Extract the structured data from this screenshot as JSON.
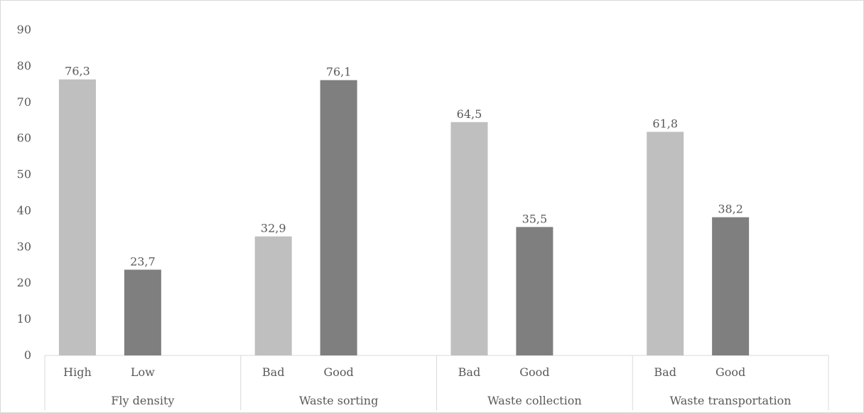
{
  "chart_data": {
    "type": "bar",
    "title": "",
    "xlabel": "",
    "ylabel": "",
    "ylim": [
      0,
      90
    ],
    "yticks": [
      0,
      10,
      20,
      30,
      40,
      50,
      60,
      70,
      80,
      90
    ],
    "grid": false,
    "legend": "none",
    "groups": [
      {
        "name": "Fly density",
        "bars": [
          {
            "category": "High",
            "value": 76.3,
            "label": "76,3"
          },
          {
            "category": "Low",
            "value": 23.7,
            "label": "23,7"
          }
        ]
      },
      {
        "name": "Waste sorting",
        "bars": [
          {
            "category": "Bad",
            "value": 32.9,
            "label": "32,9"
          },
          {
            "category": "Good",
            "value": 76.1,
            "label": "76,1"
          }
        ]
      },
      {
        "name": "Waste collection",
        "bars": [
          {
            "category": "Bad",
            "value": 64.5,
            "label": "64,5"
          },
          {
            "category": "Good",
            "value": 35.5,
            "label": "35,5"
          }
        ]
      },
      {
        "name": "Waste transportation",
        "bars": [
          {
            "category": "Bad",
            "value": 61.8,
            "label": "61,8"
          },
          {
            "category": "Good",
            "value": 38.2,
            "label": "38,2"
          }
        ]
      }
    ],
    "colors": {
      "first_bar": "#bfbfbf",
      "second_bar": "#7f7f7f",
      "axis": "#d9d9d9"
    }
  }
}
